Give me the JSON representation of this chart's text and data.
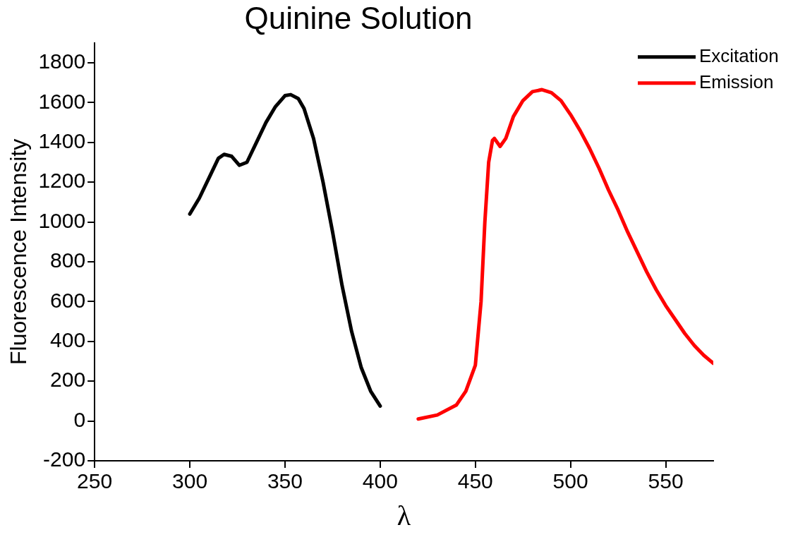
{
  "chart_data": {
    "type": "line",
    "title": "Quinine Solution",
    "xlabel": "λ",
    "ylabel": "Fluorescence Intensity",
    "xlim": [
      250,
      575
    ],
    "xticks": [
      250,
      300,
      350,
      400,
      450,
      500,
      550
    ],
    "ylim": [
      -200,
      1900
    ],
    "yticks": [
      -200,
      0,
      200,
      400,
      600,
      800,
      1000,
      1200,
      1400,
      1600,
      1800
    ],
    "grid": false,
    "legend": "top right",
    "marker": "none",
    "line_style": "solid",
    "series": [
      {
        "name": "Excitation",
        "color": "#000000",
        "x": [
          300,
          305,
          310,
          315,
          318,
          322,
          326,
          330,
          335,
          340,
          345,
          350,
          353,
          357,
          360,
          365,
          370,
          375,
          380,
          385,
          390,
          395,
          400
        ],
        "values": [
          1040,
          1120,
          1220,
          1320,
          1340,
          1330,
          1285,
          1300,
          1400,
          1500,
          1580,
          1635,
          1640,
          1620,
          1570,
          1420,
          1200,
          950,
          680,
          450,
          270,
          150,
          75
        ]
      },
      {
        "name": "Emission",
        "color": "#ff0000",
        "x": [
          420,
          430,
          440,
          445,
          450,
          453,
          455,
          457,
          459,
          460,
          463,
          466,
          470,
          475,
          480,
          485,
          490,
          495,
          500,
          505,
          510,
          515,
          520,
          525,
          530,
          535,
          540,
          545,
          550,
          555,
          560,
          565,
          570,
          575
        ],
        "values": [
          10,
          30,
          80,
          150,
          280,
          600,
          1000,
          1300,
          1410,
          1420,
          1380,
          1420,
          1530,
          1610,
          1655,
          1665,
          1650,
          1610,
          1540,
          1460,
          1370,
          1270,
          1160,
          1060,
          950,
          850,
          750,
          660,
          580,
          510,
          440,
          380,
          330,
          290
        ]
      }
    ]
  }
}
